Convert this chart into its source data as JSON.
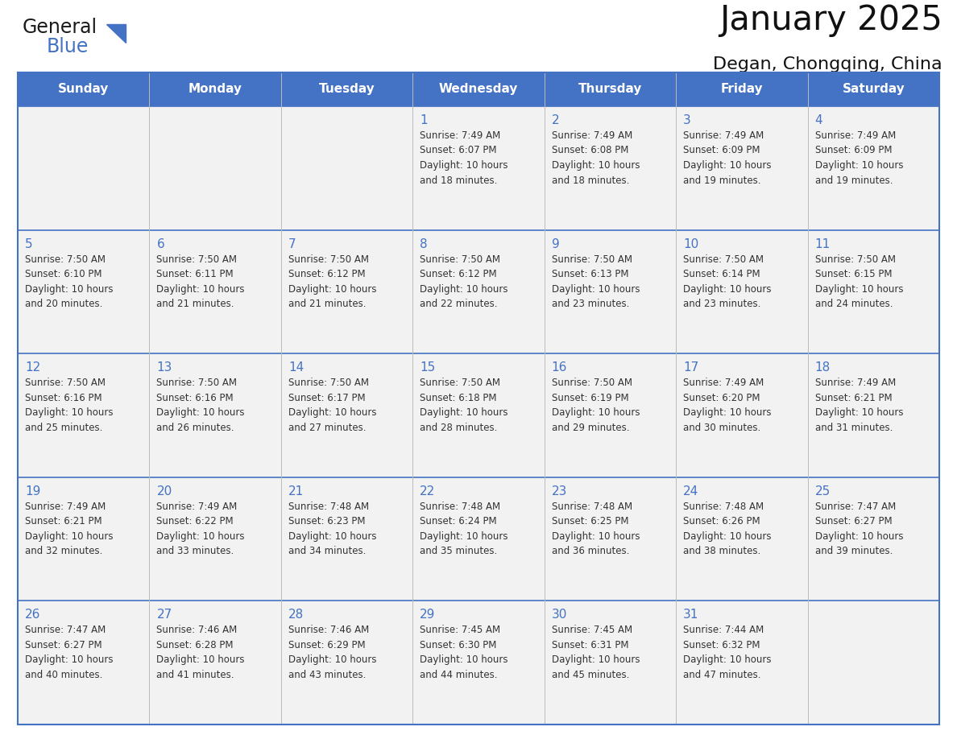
{
  "title": "January 2025",
  "subtitle": "Degan, Chongqing, China",
  "days_of_week": [
    "Sunday",
    "Monday",
    "Tuesday",
    "Wednesday",
    "Thursday",
    "Friday",
    "Saturday"
  ],
  "header_bg": "#4472C4",
  "header_text": "#FFFFFF",
  "cell_bg": "#F2F2F2",
  "day_number_color": "#4472C4",
  "text_color": "#333333",
  "border_color": "#4472C4",
  "row_line_color": "#4472C4",
  "col_line_color": "#BBBBBB",
  "calendar": [
    [
      {
        "day": null,
        "sunrise": null,
        "sunset": null,
        "daylight_line1": null,
        "daylight_line2": null
      },
      {
        "day": null,
        "sunrise": null,
        "sunset": null,
        "daylight_line1": null,
        "daylight_line2": null
      },
      {
        "day": null,
        "sunrise": null,
        "sunset": null,
        "daylight_line1": null,
        "daylight_line2": null
      },
      {
        "day": 1,
        "sunrise": "7:49 AM",
        "sunset": "6:07 PM",
        "daylight_line1": "10 hours",
        "daylight_line2": "and 18 minutes."
      },
      {
        "day": 2,
        "sunrise": "7:49 AM",
        "sunset": "6:08 PM",
        "daylight_line1": "10 hours",
        "daylight_line2": "and 18 minutes."
      },
      {
        "day": 3,
        "sunrise": "7:49 AM",
        "sunset": "6:09 PM",
        "daylight_line1": "10 hours",
        "daylight_line2": "and 19 minutes."
      },
      {
        "day": 4,
        "sunrise": "7:49 AM",
        "sunset": "6:09 PM",
        "daylight_line1": "10 hours",
        "daylight_line2": "and 19 minutes."
      }
    ],
    [
      {
        "day": 5,
        "sunrise": "7:50 AM",
        "sunset": "6:10 PM",
        "daylight_line1": "10 hours",
        "daylight_line2": "and 20 minutes."
      },
      {
        "day": 6,
        "sunrise": "7:50 AM",
        "sunset": "6:11 PM",
        "daylight_line1": "10 hours",
        "daylight_line2": "and 21 minutes."
      },
      {
        "day": 7,
        "sunrise": "7:50 AM",
        "sunset": "6:12 PM",
        "daylight_line1": "10 hours",
        "daylight_line2": "and 21 minutes."
      },
      {
        "day": 8,
        "sunrise": "7:50 AM",
        "sunset": "6:12 PM",
        "daylight_line1": "10 hours",
        "daylight_line2": "and 22 minutes."
      },
      {
        "day": 9,
        "sunrise": "7:50 AM",
        "sunset": "6:13 PM",
        "daylight_line1": "10 hours",
        "daylight_line2": "and 23 minutes."
      },
      {
        "day": 10,
        "sunrise": "7:50 AM",
        "sunset": "6:14 PM",
        "daylight_line1": "10 hours",
        "daylight_line2": "and 23 minutes."
      },
      {
        "day": 11,
        "sunrise": "7:50 AM",
        "sunset": "6:15 PM",
        "daylight_line1": "10 hours",
        "daylight_line2": "and 24 minutes."
      }
    ],
    [
      {
        "day": 12,
        "sunrise": "7:50 AM",
        "sunset": "6:16 PM",
        "daylight_line1": "10 hours",
        "daylight_line2": "and 25 minutes."
      },
      {
        "day": 13,
        "sunrise": "7:50 AM",
        "sunset": "6:16 PM",
        "daylight_line1": "10 hours",
        "daylight_line2": "and 26 minutes."
      },
      {
        "day": 14,
        "sunrise": "7:50 AM",
        "sunset": "6:17 PM",
        "daylight_line1": "10 hours",
        "daylight_line2": "and 27 minutes."
      },
      {
        "day": 15,
        "sunrise": "7:50 AM",
        "sunset": "6:18 PM",
        "daylight_line1": "10 hours",
        "daylight_line2": "and 28 minutes."
      },
      {
        "day": 16,
        "sunrise": "7:50 AM",
        "sunset": "6:19 PM",
        "daylight_line1": "10 hours",
        "daylight_line2": "and 29 minutes."
      },
      {
        "day": 17,
        "sunrise": "7:49 AM",
        "sunset": "6:20 PM",
        "daylight_line1": "10 hours",
        "daylight_line2": "and 30 minutes."
      },
      {
        "day": 18,
        "sunrise": "7:49 AM",
        "sunset": "6:21 PM",
        "daylight_line1": "10 hours",
        "daylight_line2": "and 31 minutes."
      }
    ],
    [
      {
        "day": 19,
        "sunrise": "7:49 AM",
        "sunset": "6:21 PM",
        "daylight_line1": "10 hours",
        "daylight_line2": "and 32 minutes."
      },
      {
        "day": 20,
        "sunrise": "7:49 AM",
        "sunset": "6:22 PM",
        "daylight_line1": "10 hours",
        "daylight_line2": "and 33 minutes."
      },
      {
        "day": 21,
        "sunrise": "7:48 AM",
        "sunset": "6:23 PM",
        "daylight_line1": "10 hours",
        "daylight_line2": "and 34 minutes."
      },
      {
        "day": 22,
        "sunrise": "7:48 AM",
        "sunset": "6:24 PM",
        "daylight_line1": "10 hours",
        "daylight_line2": "and 35 minutes."
      },
      {
        "day": 23,
        "sunrise": "7:48 AM",
        "sunset": "6:25 PM",
        "daylight_line1": "10 hours",
        "daylight_line2": "and 36 minutes."
      },
      {
        "day": 24,
        "sunrise": "7:48 AM",
        "sunset": "6:26 PM",
        "daylight_line1": "10 hours",
        "daylight_line2": "and 38 minutes."
      },
      {
        "day": 25,
        "sunrise": "7:47 AM",
        "sunset": "6:27 PM",
        "daylight_line1": "10 hours",
        "daylight_line2": "and 39 minutes."
      }
    ],
    [
      {
        "day": 26,
        "sunrise": "7:47 AM",
        "sunset": "6:27 PM",
        "daylight_line1": "10 hours",
        "daylight_line2": "and 40 minutes."
      },
      {
        "day": 27,
        "sunrise": "7:46 AM",
        "sunset": "6:28 PM",
        "daylight_line1": "10 hours",
        "daylight_line2": "and 41 minutes."
      },
      {
        "day": 28,
        "sunrise": "7:46 AM",
        "sunset": "6:29 PM",
        "daylight_line1": "10 hours",
        "daylight_line2": "and 43 minutes."
      },
      {
        "day": 29,
        "sunrise": "7:45 AM",
        "sunset": "6:30 PM",
        "daylight_line1": "10 hours",
        "daylight_line2": "and 44 minutes."
      },
      {
        "day": 30,
        "sunrise": "7:45 AM",
        "sunset": "6:31 PM",
        "daylight_line1": "10 hours",
        "daylight_line2": "and 45 minutes."
      },
      {
        "day": 31,
        "sunrise": "7:44 AM",
        "sunset": "6:32 PM",
        "daylight_line1": "10 hours",
        "daylight_line2": "and 47 minutes."
      },
      {
        "day": null,
        "sunrise": null,
        "sunset": null,
        "daylight_line1": null,
        "daylight_line2": null
      }
    ]
  ],
  "logo_text1": "General",
  "logo_text2": "Blue",
  "logo_text1_color": "#1a1a1a",
  "logo_text2_color": "#4472C4",
  "logo_triangle_color": "#4472C4"
}
